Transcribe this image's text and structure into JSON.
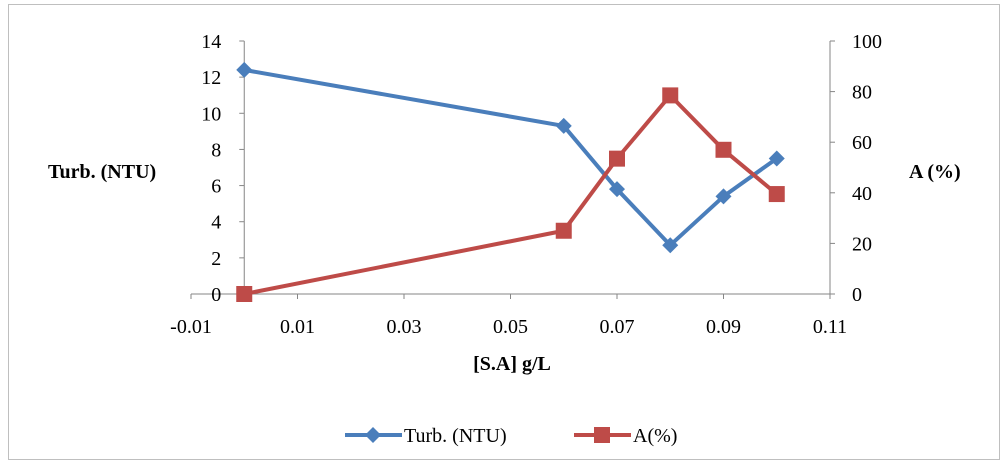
{
  "chart_data": {
    "type": "line",
    "xlabel": "[S.A] g/L",
    "ylabel_left": "Turb. (NTU)",
    "ylabel_right": "A (%)",
    "xlim": [
      -0.01,
      0.11
    ],
    "x_ticks": [
      "-0.01",
      "0.01",
      "0.03",
      "0.05",
      "0.07",
      "0.09",
      "0.11"
    ],
    "ylim_left": [
      0,
      14
    ],
    "y_ticks_left": [
      "0",
      "2",
      "4",
      "6",
      "8",
      "10",
      "12",
      "14"
    ],
    "ylim_right": [
      0,
      100
    ],
    "y_ticks_right": [
      "0",
      "20",
      "40",
      "60",
      "80",
      "100"
    ],
    "grid": false,
    "legend_position": "bottom",
    "series": [
      {
        "name": "Turb. (NTU)",
        "axis": "left",
        "color": "#4a7ebb",
        "marker": "diamond",
        "x": [
          0,
          0.06,
          0.07,
          0.08,
          0.09,
          0.1
        ],
        "y": [
          12.4,
          9.3,
          5.8,
          2.7,
          5.4,
          7.5
        ]
      },
      {
        "name": "A(%)",
        "axis": "right",
        "color": "#be4b48",
        "marker": "square",
        "x": [
          0,
          0.06,
          0.07,
          0.08,
          0.09,
          0.1
        ],
        "y": [
          0,
          25,
          53.5,
          78.5,
          57,
          39.5
        ]
      }
    ]
  }
}
